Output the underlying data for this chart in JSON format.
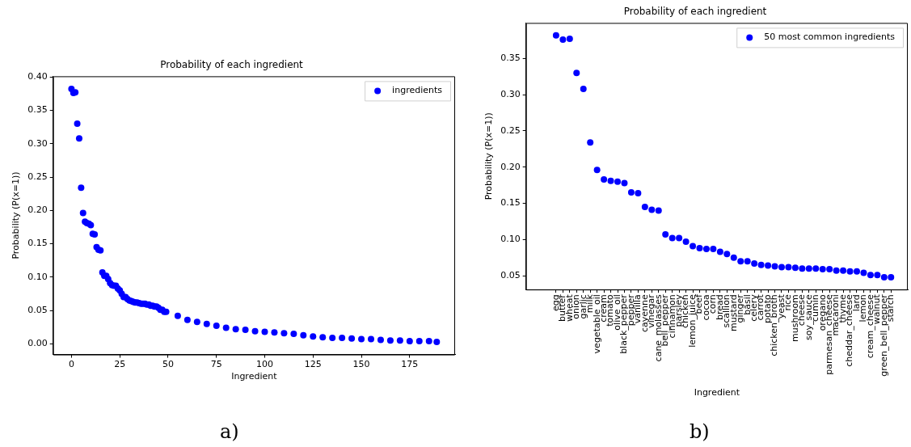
{
  "chart_data": [
    {
      "type": "scatter",
      "title": "Probability of each ingredient",
      "xlabel": "Ingredient",
      "ylabel": "Probability (P(x=1))",
      "annotations": [
        "a)"
      ],
      "legend": "top right",
      "marker": "circle",
      "grid": false,
      "x": [
        0,
        1,
        2,
        3,
        4,
        5,
        6,
        7,
        8,
        9,
        10,
        11,
        12,
        13,
        14,
        15,
        16,
        17,
        18,
        19,
        20,
        21,
        22,
        23,
        24,
        25,
        26,
        27,
        28,
        29,
        30,
        31,
        32,
        33,
        34,
        35,
        36,
        37,
        38,
        39,
        40,
        41,
        42,
        43,
        44,
        45,
        46,
        47,
        48,
        49,
        55,
        60,
        65,
        70,
        75,
        80,
        85,
        90,
        95,
        100,
        105,
        110,
        115,
        120,
        125,
        130,
        135,
        140,
        145,
        150,
        155,
        160,
        165,
        170,
        175,
        180,
        185,
        189
      ],
      "series": [
        {
          "name": "ingredients",
          "color": "#0000ff",
          "values": [
            0.382,
            0.376,
            0.377,
            0.33,
            0.308,
            0.234,
            0.196,
            0.183,
            0.181,
            0.18,
            0.178,
            0.165,
            0.164,
            0.145,
            0.141,
            0.14,
            0.107,
            0.102,
            0.102,
            0.097,
            0.091,
            0.088,
            0.087,
            0.087,
            0.083,
            0.08,
            0.075,
            0.07,
            0.07,
            0.067,
            0.065,
            0.064,
            0.063,
            0.062,
            0.062,
            0.061,
            0.06,
            0.06,
            0.06,
            0.059,
            0.059,
            0.057,
            0.057,
            0.056,
            0.056,
            0.054,
            0.051,
            0.051,
            0.048,
            0.048,
            0.042,
            0.036,
            0.033,
            0.03,
            0.027,
            0.024,
            0.022,
            0.021,
            0.019,
            0.018,
            0.017,
            0.016,
            0.015,
            0.013,
            0.011,
            0.01,
            0.009,
            0.009,
            0.008,
            0.007,
            0.007,
            0.006,
            0.005,
            0.005,
            0.004,
            0.004,
            0.004,
            0.003
          ]
        }
      ],
      "xlim": [
        -9.5,
        198.5
      ],
      "xticks": [
        0,
        25,
        50,
        75,
        100,
        125,
        150,
        175
      ],
      "ylim": [
        -0.016,
        0.401
      ],
      "yticks": [
        {
          "value": 0,
          "label": "0.00"
        },
        0.05,
        {
          "value": 0.1,
          "label": "0.10"
        },
        0.15,
        {
          "value": 0.2,
          "label": "0.20"
        },
        0.25,
        {
          "value": 0.3,
          "label": "0.30"
        },
        0.35,
        {
          "value": 0.4,
          "label": "0.40"
        }
      ]
    },
    {
      "type": "scatter",
      "title": "Probability of each ingredient",
      "xlabel": "Ingredient",
      "ylabel": "Probability (P(x=1))",
      "annotations": [
        "b)"
      ],
      "legend": "top right",
      "marker": "circle",
      "grid": false,
      "categories": [
        "egg",
        "butter",
        "wheat",
        "onion",
        "garlic",
        "milk",
        "vegetable_oil",
        "cream",
        "tomato",
        "olive_oil",
        "black_pepper",
        "pepper",
        "vanilla",
        "cayenne",
        "vinegar",
        "cane_molasses",
        "bell_pepper",
        "cinnamon",
        "parsley",
        "chicken",
        "lemon_juice",
        "beef",
        "cocoa",
        "corn",
        "bread",
        "scallion",
        "mustard",
        "ginger",
        "basil",
        "celery",
        "carrot",
        "potato",
        "chicken_broth",
        "yeast",
        "rice",
        "mushroom",
        "cheese",
        "soy_sauce",
        "cumin",
        "oregano",
        "parmesan_cheese",
        "macaroni",
        "thyme",
        "cheddar_cheese",
        "lard",
        "lemon",
        "cream_cheese",
        "walnut",
        "green_bell_pepper",
        "starch"
      ],
      "series": [
        {
          "name": "50 most common ingredients",
          "color": "#0000ff",
          "values": [
            0.382,
            0.376,
            0.377,
            0.33,
            0.308,
            0.234,
            0.196,
            0.183,
            0.181,
            0.18,
            0.178,
            0.165,
            0.164,
            0.145,
            0.141,
            0.14,
            0.107,
            0.102,
            0.102,
            0.097,
            0.091,
            0.088,
            0.087,
            0.087,
            0.083,
            0.08,
            0.075,
            0.07,
            0.07,
            0.067,
            0.065,
            0.064,
            0.063,
            0.062,
            0.062,
            0.061,
            0.06,
            0.06,
            0.06,
            0.059,
            0.059,
            0.057,
            0.057,
            0.056,
            0.056,
            0.054,
            0.051,
            0.051,
            0.048,
            0.048
          ]
        }
      ],
      "ylim": [
        0.031,
        0.399
      ],
      "yticks": [
        0.05,
        {
          "value": 0.1,
          "label": "0.10"
        },
        0.15,
        {
          "value": 0.2,
          "label": "0.20"
        },
        0.25,
        {
          "value": 0.3,
          "label": "0.30"
        },
        0.35
      ]
    }
  ]
}
